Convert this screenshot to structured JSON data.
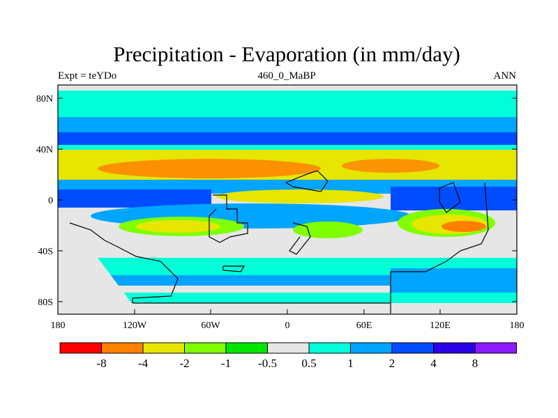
{
  "title": "Precipitation - Evaporation (in mm/day)",
  "left_label": "Expt = teYDo",
  "center_label": "460_0_MaBP",
  "right_label": "ANN",
  "axes": {
    "lat_ticks": [
      "80N",
      "40N",
      "0",
      "40S",
      "80S"
    ],
    "lon_ticks": [
      "180",
      "120W",
      "60W",
      "0",
      "60E",
      "120E",
      "180"
    ]
  },
  "colorbar": {
    "colors": [
      "#ff0000",
      "#ff8000",
      "#e6e600",
      "#80ff00",
      "#00e600",
      "#e6e6e6",
      "#00ffd9",
      "#00a5ff",
      "#004cff",
      "#2a00e6",
      "#8c1aff"
    ],
    "labels": [
      "-8",
      "-4",
      "-2",
      "-1",
      "-0.5",
      "0.5",
      "1",
      "2",
      "4",
      "8"
    ]
  }
}
